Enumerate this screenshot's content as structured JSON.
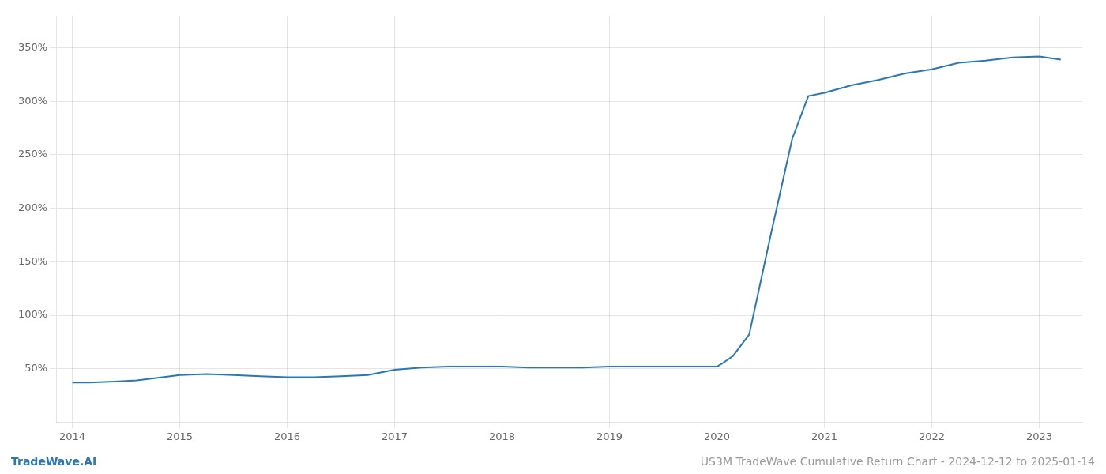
{
  "chart_data": {
    "type": "line",
    "x": [
      2014.0,
      2014.15,
      2014.4,
      2014.6,
      2014.75,
      2015.0,
      2015.25,
      2015.5,
      2015.75,
      2016.0,
      2016.25,
      2016.5,
      2016.75,
      2017.0,
      2017.25,
      2017.5,
      2017.75,
      2018.0,
      2018.25,
      2018.5,
      2018.75,
      2019.0,
      2019.25,
      2019.5,
      2019.75,
      2019.95,
      2020.0,
      2020.05,
      2020.15,
      2020.3,
      2020.5,
      2020.7,
      2020.85,
      2021.0,
      2021.25,
      2021.5,
      2021.75,
      2022.0,
      2022.25,
      2022.5,
      2022.75,
      2023.0,
      2023.2
    ],
    "values": [
      37,
      37,
      38,
      39,
      41,
      44,
      45,
      44,
      43,
      42,
      42,
      43,
      44,
      49,
      51,
      52,
      52,
      52,
      51,
      51,
      51,
      52,
      52,
      52,
      52,
      52,
      52,
      55,
      62,
      82,
      175,
      265,
      305,
      308,
      315,
      320,
      326,
      330,
      336,
      338,
      341,
      342,
      339
    ],
    "color": "#2878b5",
    "xlim": [
      2013.85,
      2023.4
    ],
    "xticks": [
      2014,
      2015,
      2016,
      2017,
      2018,
      2019,
      2020,
      2021,
      2022,
      2023
    ],
    "ylim": [
      0,
      380
    ],
    "yticks": [
      {
        "value": 50,
        "label": "50%"
      },
      {
        "value": 100,
        "label": "100%"
      },
      {
        "value": 150,
        "label": "150%"
      },
      {
        "value": 200,
        "label": "200%"
      },
      {
        "value": 250,
        "label": "250%"
      },
      {
        "value": 300,
        "label": "300%"
      },
      {
        "value": 350,
        "label": "350%"
      }
    ],
    "grid": true,
    "annotations": [
      {
        "text": "TradeWave.AI",
        "color": "#2878b5"
      },
      {
        "text": "US3M TradeWave Cumulative Return Chart - 2024-12-12 to 2025-01-14",
        "color": "#999999"
      }
    ]
  }
}
